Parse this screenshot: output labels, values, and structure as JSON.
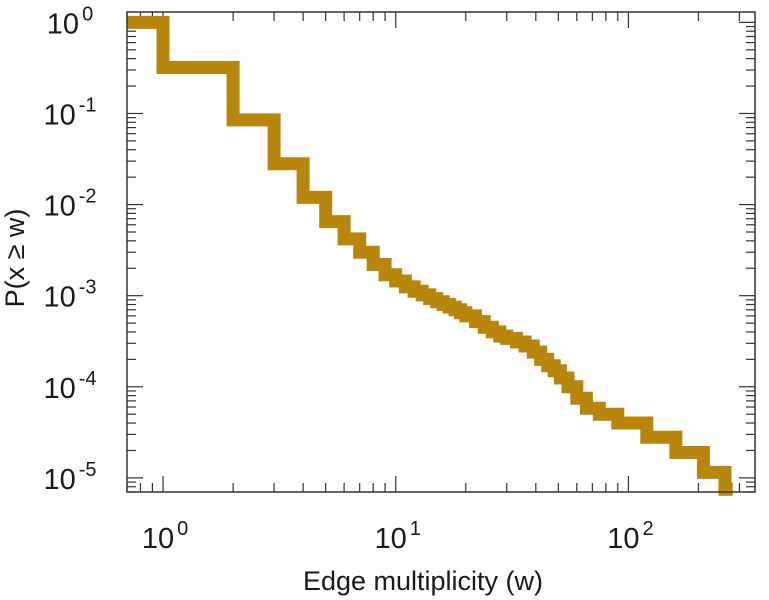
{
  "chart_data": {
    "type": "line",
    "step": true,
    "xlabel": "Edge multiplicity (w)",
    "ylabel": "P(x ≥ w)",
    "xscale": "log",
    "yscale": "log",
    "xlim": [
      0.7,
      350
    ],
    "ylim": [
      7e-06,
      1.3
    ],
    "grid": false,
    "x_ticks": [
      {
        "value": 1,
        "base": "10",
        "exp": "0"
      },
      {
        "value": 10,
        "base": "10",
        "exp": "1"
      },
      {
        "value": 100,
        "base": "10",
        "exp": "2"
      }
    ],
    "y_ticks": [
      {
        "value": 1,
        "base": "10",
        "exp": "0"
      },
      {
        "value": 0.1,
        "base": "10",
        "exp": "-1"
      },
      {
        "value": 0.01,
        "base": "10",
        "exp": "-2"
      },
      {
        "value": 0.001,
        "base": "10",
        "exp": "-3"
      },
      {
        "value": 0.0001,
        "base": "10",
        "exp": "-4"
      },
      {
        "value": 1e-05,
        "base": "10",
        "exp": "-5"
      }
    ],
    "series": [
      {
        "color": "#b8860b",
        "x": [
          0.7,
          1,
          2,
          3,
          4,
          5,
          6,
          7,
          8,
          9,
          10,
          11,
          12,
          13,
          14,
          15,
          16,
          17,
          18,
          19,
          20,
          22,
          24,
          26,
          28,
          30,
          33,
          36,
          39,
          42,
          45,
          48,
          51,
          55,
          60,
          66,
          75,
          90,
          120,
          160,
          210,
          260
        ],
        "y": [
          1.0,
          0.32,
          0.085,
          0.028,
          0.012,
          0.0065,
          0.0042,
          0.003,
          0.0022,
          0.0017,
          0.00145,
          0.00125,
          0.00112,
          0.00102,
          0.00093,
          0.00086,
          0.0008,
          0.00075,
          0.0007,
          0.00065,
          0.0006,
          0.00052,
          0.00045,
          0.0004,
          0.00036,
          0.00034,
          0.00031,
          0.00028,
          0.00024,
          0.0002,
          0.00017,
          0.00015,
          0.000125,
          0.0001,
          7.5e-05,
          5.8e-05,
          5e-05,
          4e-05,
          2.8e-05,
          1.9e-05,
          1.15e-05,
          7.5e-06
        ]
      }
    ]
  }
}
